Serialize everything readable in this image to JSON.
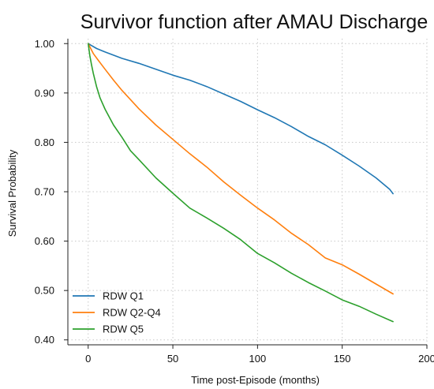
{
  "chart_data": {
    "type": "line",
    "title": "Survivor function after AMAU Discharge",
    "xlabel": "Time post-Episode (months)",
    "ylabel": "Survival Probability",
    "xlim": [
      -12,
      200
    ],
    "ylim": [
      0.39,
      1.01
    ],
    "xticks": [
      0,
      50,
      100,
      150,
      200
    ],
    "xtick_labels": [
      "0",
      "50",
      "100",
      "150",
      "200"
    ],
    "yticks": [
      0.4,
      0.5,
      0.6,
      0.7,
      0.8,
      0.9,
      1.0
    ],
    "ytick_labels": [
      "0.40",
      "0.50",
      "0.60",
      "0.70",
      "0.80",
      "0.90",
      "1.00"
    ],
    "grid": true,
    "legend_position": "bottom-left",
    "series": [
      {
        "name": "RDW Q1",
        "color": "#1f77b4",
        "x": [
          0,
          5,
          10,
          20,
          30,
          40,
          50,
          60,
          70,
          80,
          90,
          100,
          110,
          120,
          130,
          140,
          150,
          160,
          170,
          178,
          180
        ],
        "y": [
          1.0,
          0.99,
          0.983,
          0.97,
          0.96,
          0.948,
          0.936,
          0.926,
          0.913,
          0.898,
          0.883,
          0.866,
          0.85,
          0.832,
          0.812,
          0.795,
          0.774,
          0.752,
          0.728,
          0.705,
          0.696
        ]
      },
      {
        "name": "RDW Q2-Q4",
        "color": "#ff7f0e",
        "x": [
          0,
          3,
          6,
          10,
          15,
          20,
          30,
          40,
          50,
          60,
          70,
          80,
          90,
          100,
          110,
          120,
          130,
          140,
          150,
          160,
          170,
          180
        ],
        "y": [
          1.0,
          0.98,
          0.966,
          0.948,
          0.926,
          0.905,
          0.868,
          0.835,
          0.806,
          0.777,
          0.75,
          0.72,
          0.693,
          0.667,
          0.643,
          0.616,
          0.593,
          0.566,
          0.552,
          0.533,
          0.513,
          0.493
        ]
      },
      {
        "name": "RDW Q5",
        "color": "#2ca02c",
        "x": [
          0,
          1,
          2,
          3,
          5,
          7,
          10,
          15,
          20,
          25,
          30,
          40,
          50,
          60,
          70,
          80,
          90,
          100,
          110,
          120,
          130,
          140,
          150,
          160,
          170,
          180
        ],
        "y": [
          1.0,
          0.975,
          0.957,
          0.94,
          0.912,
          0.89,
          0.867,
          0.835,
          0.81,
          0.783,
          0.765,
          0.728,
          0.697,
          0.667,
          0.647,
          0.626,
          0.603,
          0.575,
          0.556,
          0.535,
          0.516,
          0.499,
          0.481,
          0.468,
          0.452,
          0.437
        ]
      }
    ]
  }
}
